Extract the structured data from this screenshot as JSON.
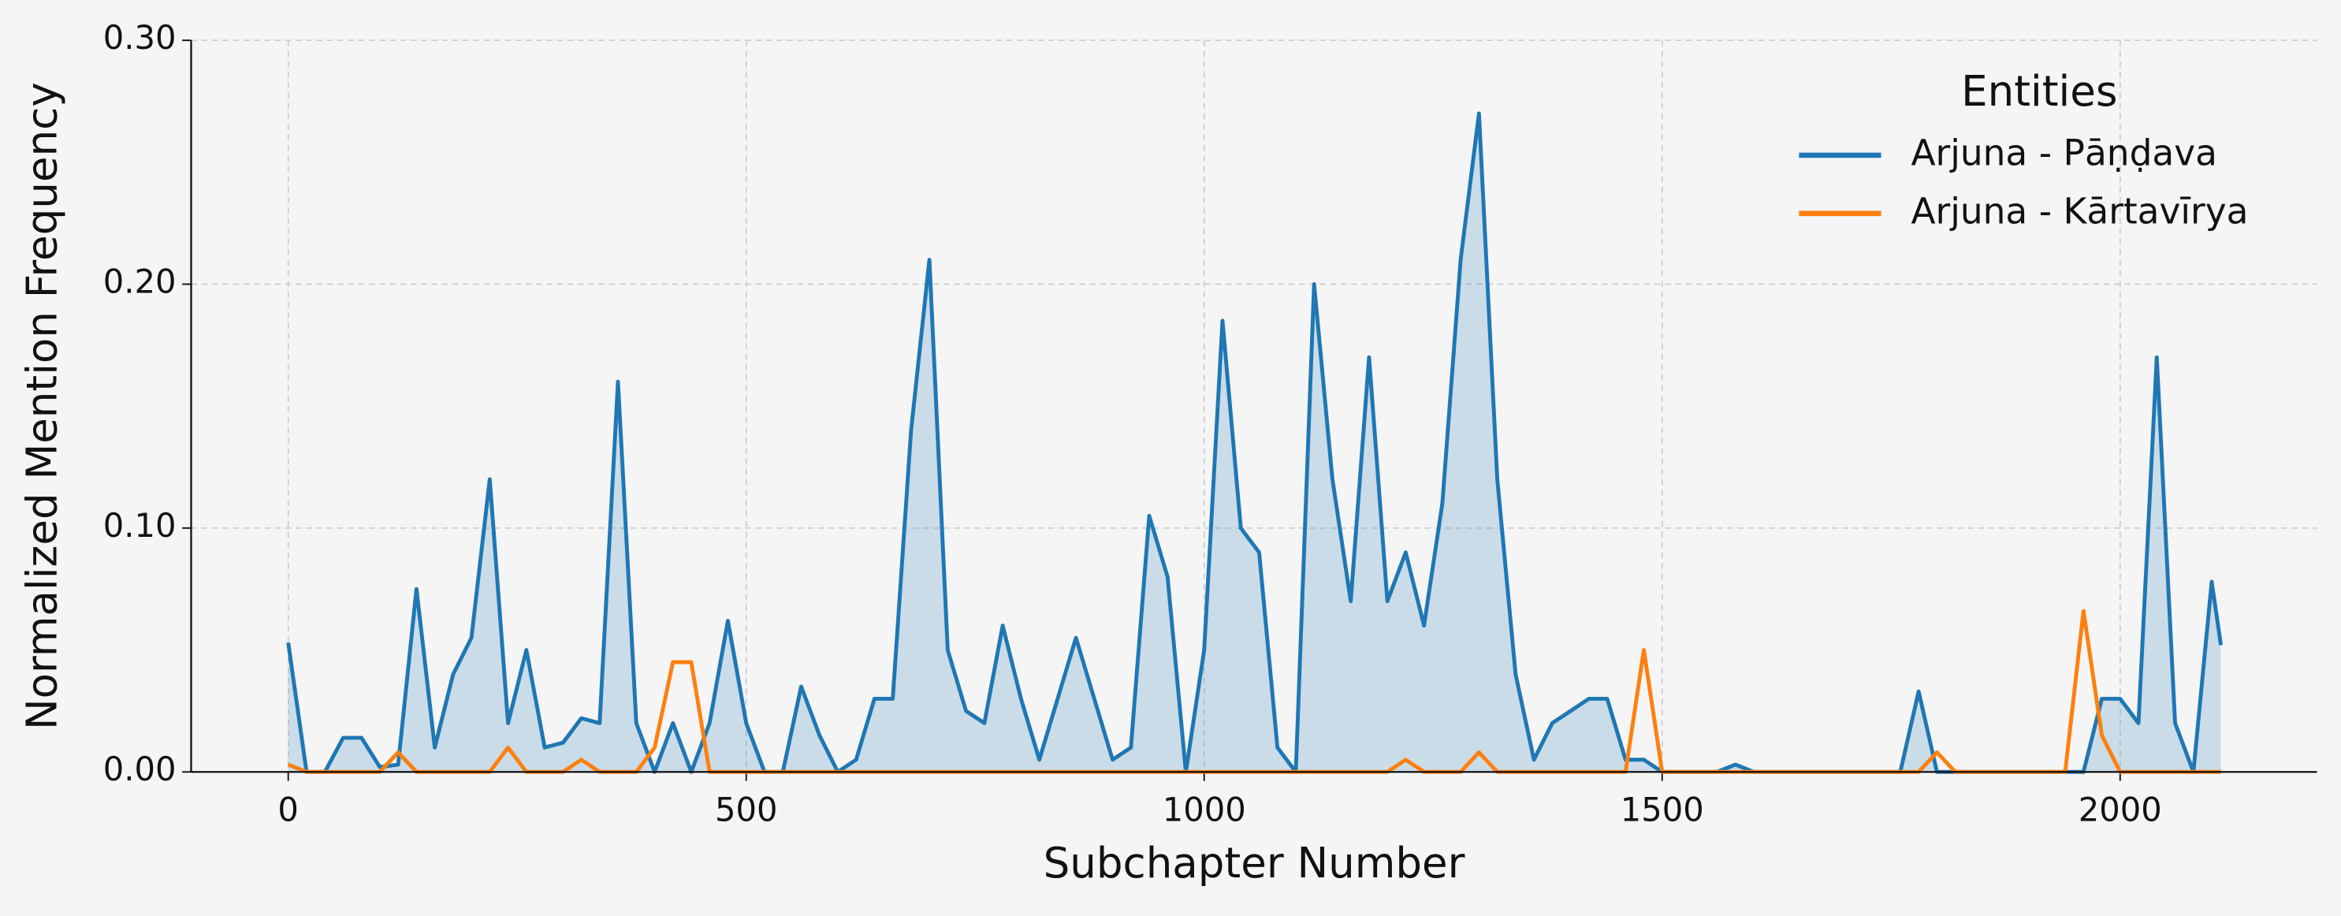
{
  "chart_data": {
    "type": "line",
    "xlabel": "Subchapter Number",
    "ylabel": "Normalized Mention Frequency",
    "legend_title": "Entities",
    "legend": "upper right",
    "grid": true,
    "xlim": [
      -106,
      2215
    ],
    "ylim": [
      0,
      0.3
    ],
    "xticks": [
      0,
      500,
      1000,
      1500,
      2000
    ],
    "yticks": [
      {
        "value": 0,
        "label": "0.00"
      },
      {
        "value": 0.1,
        "label": "0.10"
      },
      {
        "value": 0.2,
        "label": "0.20"
      },
      {
        "value": 0.3,
        "label": "0.30"
      }
    ],
    "x": [
      0,
      20,
      40,
      60,
      80,
      100,
      120,
      140,
      160,
      180,
      200,
      220,
      240,
      260,
      280,
      300,
      320,
      340,
      360,
      380,
      400,
      420,
      440,
      460,
      480,
      500,
      520,
      540,
      560,
      580,
      600,
      620,
      640,
      660,
      680,
      700,
      720,
      740,
      760,
      780,
      800,
      820,
      840,
      860,
      880,
      900,
      920,
      940,
      960,
      980,
      1000,
      1020,
      1040,
      1060,
      1080,
      1100,
      1120,
      1140,
      1160,
      1180,
      1200,
      1220,
      1240,
      1260,
      1280,
      1300,
      1320,
      1340,
      1360,
      1380,
      1400,
      1420,
      1440,
      1460,
      1480,
      1500,
      1520,
      1540,
      1560,
      1580,
      1600,
      1620,
      1640,
      1660,
      1680,
      1700,
      1720,
      1740,
      1760,
      1780,
      1800,
      1820,
      1840,
      1860,
      1880,
      1900,
      1920,
      1940,
      1960,
      1980,
      2000,
      2020,
      2040,
      2060,
      2080,
      2100,
      2110
    ],
    "series": [
      {
        "name": "Arjuna - Pāṇḍava",
        "color": "#1f77b4",
        "fill": true,
        "values": [
          0.053,
          0,
          0,
          0.014,
          0.014,
          0.002,
          0.003,
          0.075,
          0.01,
          0.04,
          0.055,
          0.12,
          0.02,
          0.05,
          0.01,
          0.012,
          0.022,
          0.02,
          0.16,
          0.02,
          0,
          0.02,
          0,
          0.02,
          0.062,
          0.02,
          0,
          0,
          0.035,
          0.015,
          0,
          0.005,
          0.03,
          0.03,
          0.14,
          0.21,
          0.05,
          0.025,
          0.02,
          0.06,
          0.03,
          0.005,
          0.03,
          0.055,
          0.03,
          0.005,
          0.01,
          0.105,
          0.08,
          0,
          0.05,
          0.185,
          0.1,
          0.09,
          0.01,
          0,
          0.2,
          0.12,
          0.07,
          0.17,
          0.07,
          0.09,
          0.06,
          0.11,
          0.21,
          0.27,
          0.12,
          0.04,
          0.005,
          0.02,
          0.025,
          0.03,
          0.03,
          0.005,
          0.005,
          0,
          0,
          0,
          0,
          0.003,
          0,
          0,
          0,
          0,
          0,
          0,
          0,
          0,
          0,
          0.033,
          0,
          0,
          0,
          0,
          0,
          0,
          0,
          0,
          0,
          0.03,
          0.03,
          0.02,
          0.17,
          0.02,
          0,
          0.078,
          0.052
        ]
      },
      {
        "name": "Arjuna - Kārtavīrya",
        "color": "#ff7f0e",
        "fill": false,
        "values": [
          0.003,
          0,
          0,
          0,
          0,
          0,
          0.008,
          0,
          0,
          0,
          0,
          0,
          0.01,
          0,
          0,
          0,
          0.005,
          0,
          0,
          0,
          0.01,
          0.045,
          0.045,
          0,
          0,
          0,
          0,
          0,
          0,
          0,
          0,
          0,
          0,
          0,
          0,
          0,
          0,
          0,
          0,
          0,
          0,
          0,
          0,
          0,
          0,
          0,
          0,
          0,
          0,
          0,
          0,
          0,
          0,
          0,
          0,
          0,
          0,
          0,
          0,
          0,
          0,
          0.005,
          0,
          0,
          0,
          0.008,
          0,
          0,
          0,
          0,
          0,
          0,
          0,
          0,
          0.05,
          0,
          0,
          0,
          0,
          0,
          0,
          0,
          0,
          0,
          0,
          0,
          0,
          0,
          0,
          0,
          0.008,
          0,
          0,
          0,
          0,
          0,
          0,
          0,
          0.066,
          0.015,
          0,
          0,
          0,
          0,
          0,
          0,
          0
        ]
      }
    ]
  }
}
